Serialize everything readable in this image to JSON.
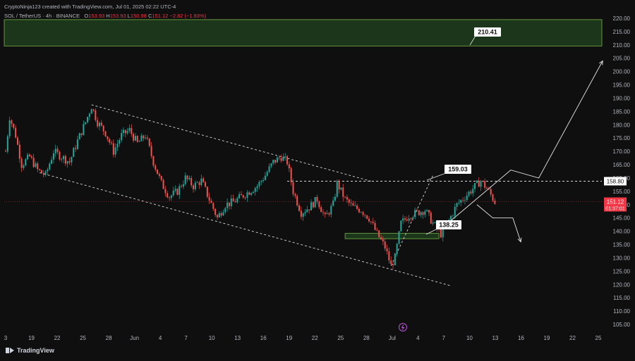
{
  "header": {
    "attribution": "CryptoNinja123 created with TradingView.com, Jul 01, 2025 02:22 UTC-4",
    "symbol": "SOL / TetherUS · 4h · BINANCE",
    "ohlc": {
      "o_label": "O",
      "o": "153.93",
      "h_label": "H",
      "h": "153.93",
      "l_label": "L",
      "l": "150.98",
      "c_label": "C",
      "c": "151.12",
      "change": "−2.82 (−1.83%)"
    }
  },
  "footer": {
    "brand": "TradingView"
  },
  "colors": {
    "background": "#0f0f0f",
    "up": "#26a69a",
    "down": "#ef5350",
    "zone_fill": "#1d3b1d",
    "zone_border": "#7ab347",
    "current_price": "#f23645",
    "annotation": "#e0e0e0"
  },
  "chart_data": {
    "type": "candlestick",
    "y_axis": {
      "range": [
        100,
        222
      ],
      "ticks": [
        105,
        110,
        115,
        120,
        125,
        130,
        135,
        140,
        145,
        150,
        155,
        160,
        165,
        170,
        175,
        180,
        185,
        190,
        195,
        200,
        205,
        210,
        215,
        220
      ],
      "tick_labels": [
        "105.00",
        "110.00",
        "115.00",
        "120.00",
        "125.00",
        "130.00",
        "135.00",
        "140.00",
        "145.00",
        "150.00",
        "155.00",
        "160.00",
        "165.00",
        "170.00",
        "175.00",
        "180.00",
        "185.00",
        "190.00",
        "195.00",
        "200.00",
        "205.00",
        "210.00",
        "215.00",
        "220.00"
      ]
    },
    "x_axis": {
      "tick_labels": [
        "3",
        "19",
        "22",
        "25",
        "28",
        "Jun",
        "4",
        "7",
        "10",
        "13",
        "16",
        "19",
        "22",
        "25",
        "28",
        "Jul",
        "4",
        "7",
        "10",
        "13",
        "16",
        "19",
        "22",
        "25"
      ]
    },
    "price_path": [
      [
        0,
        170
      ],
      [
        2,
        183
      ],
      [
        5,
        176
      ],
      [
        8,
        165
      ],
      [
        12,
        168
      ],
      [
        16,
        163
      ],
      [
        20,
        161
      ],
      [
        24,
        170
      ],
      [
        28,
        168
      ],
      [
        32,
        166
      ],
      [
        36,
        174
      ],
      [
        40,
        181
      ],
      [
        43,
        187
      ],
      [
        46,
        181
      ],
      [
        50,
        177
      ],
      [
        54,
        170
      ],
      [
        58,
        176
      ],
      [
        62,
        178
      ],
      [
        66,
        173
      ],
      [
        70,
        176
      ],
      [
        74,
        166
      ],
      [
        78,
        158
      ],
      [
        82,
        153
      ],
      [
        86,
        155
      ],
      [
        90,
        160
      ],
      [
        94,
        157
      ],
      [
        98,
        159
      ],
      [
        102,
        152
      ],
      [
        106,
        145
      ],
      [
        110,
        150
      ],
      [
        114,
        151
      ],
      [
        118,
        153
      ],
      [
        122,
        155
      ],
      [
        126,
        157
      ],
      [
        130,
        161
      ],
      [
        134,
        166
      ],
      [
        138,
        168
      ],
      [
        141,
        166
      ],
      [
        144,
        155
      ],
      [
        148,
        147
      ],
      [
        152,
        149
      ],
      [
        156,
        152
      ],
      [
        160,
        145
      ],
      [
        164,
        150
      ],
      [
        166,
        158
      ],
      [
        170,
        152
      ],
      [
        174,
        149
      ],
      [
        178,
        148
      ],
      [
        182,
        145
      ],
      [
        186,
        139
      ],
      [
        190,
        134
      ],
      [
        193,
        127
      ],
      [
        195,
        130
      ],
      [
        198,
        143
      ],
      [
        202,
        146
      ],
      [
        206,
        147
      ],
      [
        210,
        148
      ],
      [
        214,
        143
      ],
      [
        218,
        139
      ],
      [
        222,
        144
      ],
      [
        226,
        150
      ],
      [
        230,
        153
      ],
      [
        234,
        156
      ],
      [
        238,
        159
      ],
      [
        242,
        155
      ],
      [
        245,
        151
      ]
    ],
    "current_price": {
      "value": 151.12,
      "label": "151.12",
      "countdown": "01:37:01"
    },
    "resistance_line": {
      "value": 158.8,
      "label": "158.80"
    },
    "zones": [
      {
        "name": "upper-target-zone",
        "low": 209.6,
        "high": 219.5
      },
      {
        "name": "support-zone",
        "low": 137.2,
        "high": 139.2
      }
    ],
    "annotations": [
      {
        "name": "target-210",
        "text": "210.41"
      },
      {
        "name": "level-159",
        "text": "159.03"
      },
      {
        "name": "level-138",
        "text": "138.25"
      }
    ],
    "channel": {
      "upper": [
        [
          43,
          187.5
        ],
        [
          183,
          158.8
        ]
      ],
      "lower": [
        [
          17,
          162
        ],
        [
          223,
          119.5
        ]
      ]
    },
    "projection_up": [
      [
        223,
        144
      ],
      [
        253,
        163
      ],
      [
        267,
        160
      ],
      [
        299,
        204
      ]
    ],
    "projection_down": [
      [
        236,
        150
      ],
      [
        244,
        145
      ],
      [
        254,
        145
      ],
      [
        258,
        136
      ]
    ]
  }
}
